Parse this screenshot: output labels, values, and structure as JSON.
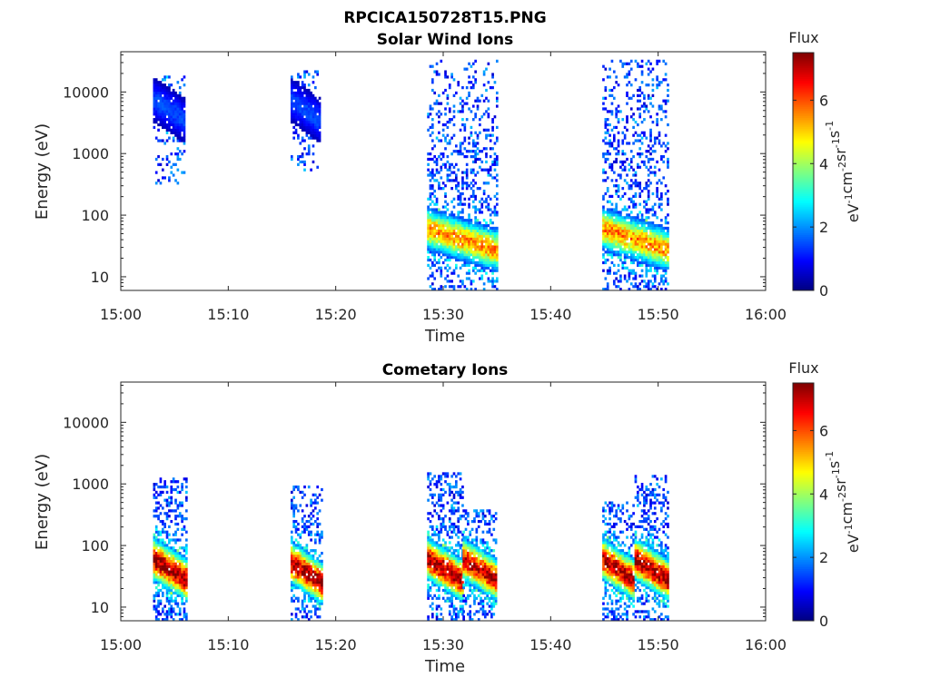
{
  "figure": {
    "title": "RPCICA150728T15.PNG"
  },
  "chart_data": [
    {
      "type": "heatmap",
      "title": "Solar Wind Ions",
      "xlabel": "Time",
      "ylabel": "Energy (eV)",
      "x_ticks": [
        "15:00",
        "15:10",
        "15:20",
        "15:30",
        "15:40",
        "15:50",
        "16:00"
      ],
      "x_range_minutes": [
        0,
        60
      ],
      "y_scale": "log",
      "y_ticks": [
        "10",
        "100",
        "1000",
        "10000"
      ],
      "y_tick_values": [
        10,
        100,
        1000,
        10000
      ],
      "ylim": [
        6,
        45000
      ],
      "colorbar": {
        "label": "Flux",
        "unit_label": "eV-1cm-2sr-1s-1",
        "ticks": [
          "0",
          "2",
          "4",
          "6"
        ],
        "range": [
          0,
          7.5
        ],
        "colormap": "jet"
      },
      "bursts": [
        {
          "t_start_min": 3.0,
          "t_end_min": 6.0,
          "e_min_eV": 300,
          "e_max_eV": 18000,
          "peak_e_eV": 5000,
          "peak_flux": 1.5,
          "density": 0.35
        },
        {
          "t_start_min": 15.8,
          "t_end_min": 18.5,
          "e_min_eV": 500,
          "e_max_eV": 22000,
          "peak_e_eV": 5000,
          "peak_flux": 1.5,
          "density": 0.35
        },
        {
          "t_start_min": 28.5,
          "t_end_min": 35.0,
          "e_min_eV": 6,
          "e_max_eV": 35000,
          "peak_e_eV": 40,
          "peak_flux": 5.5,
          "density": 0.6
        },
        {
          "t_start_min": 44.8,
          "t_end_min": 51.0,
          "e_min_eV": 6,
          "e_max_eV": 35000,
          "peak_e_eV": 40,
          "peak_flux": 5.5,
          "density": 0.6
        }
      ]
    },
    {
      "type": "heatmap",
      "title": "Cometary Ions",
      "xlabel": "Time",
      "ylabel": "Energy (eV)",
      "x_ticks": [
        "15:00",
        "15:10",
        "15:20",
        "15:30",
        "15:40",
        "15:50",
        "16:00"
      ],
      "x_range_minutes": [
        0,
        60
      ],
      "y_scale": "log",
      "y_ticks": [
        "10",
        "100",
        "1000",
        "10000"
      ],
      "y_tick_values": [
        10,
        100,
        1000,
        10000
      ],
      "ylim": [
        6,
        45000
      ],
      "colorbar": {
        "label": "Flux",
        "unit_label": "eV-1cm-2sr-1s-1",
        "ticks": [
          "0",
          "2",
          "4",
          "6"
        ],
        "range": [
          0,
          7.5
        ],
        "colormap": "jet"
      },
      "bursts": [
        {
          "t_start_min": 3.0,
          "t_end_min": 6.2,
          "e_min_eV": 6,
          "e_max_eV": 1300,
          "peak_e_eV": 40,
          "peak_flux": 7.3,
          "density": 0.7
        },
        {
          "t_start_min": 15.8,
          "t_end_min": 18.8,
          "e_min_eV": 6,
          "e_max_eV": 900,
          "peak_e_eV": 35,
          "peak_flux": 7.3,
          "density": 0.7
        },
        {
          "t_start_min": 28.5,
          "t_end_min": 31.8,
          "e_min_eV": 6,
          "e_max_eV": 1600,
          "peak_e_eV": 40,
          "peak_flux": 7.3,
          "density": 0.7
        },
        {
          "t_start_min": 31.8,
          "t_end_min": 35.0,
          "e_min_eV": 6,
          "e_max_eV": 400,
          "peak_e_eV": 40,
          "peak_flux": 7.0,
          "density": 0.7
        },
        {
          "t_start_min": 44.8,
          "t_end_min": 47.8,
          "e_min_eV": 6,
          "e_max_eV": 500,
          "peak_e_eV": 40,
          "peak_flux": 7.0,
          "density": 0.7
        },
        {
          "t_start_min": 47.8,
          "t_end_min": 51.0,
          "e_min_eV": 6,
          "e_max_eV": 1400,
          "peak_e_eV": 40,
          "peak_flux": 7.3,
          "density": 0.7
        }
      ]
    }
  ]
}
